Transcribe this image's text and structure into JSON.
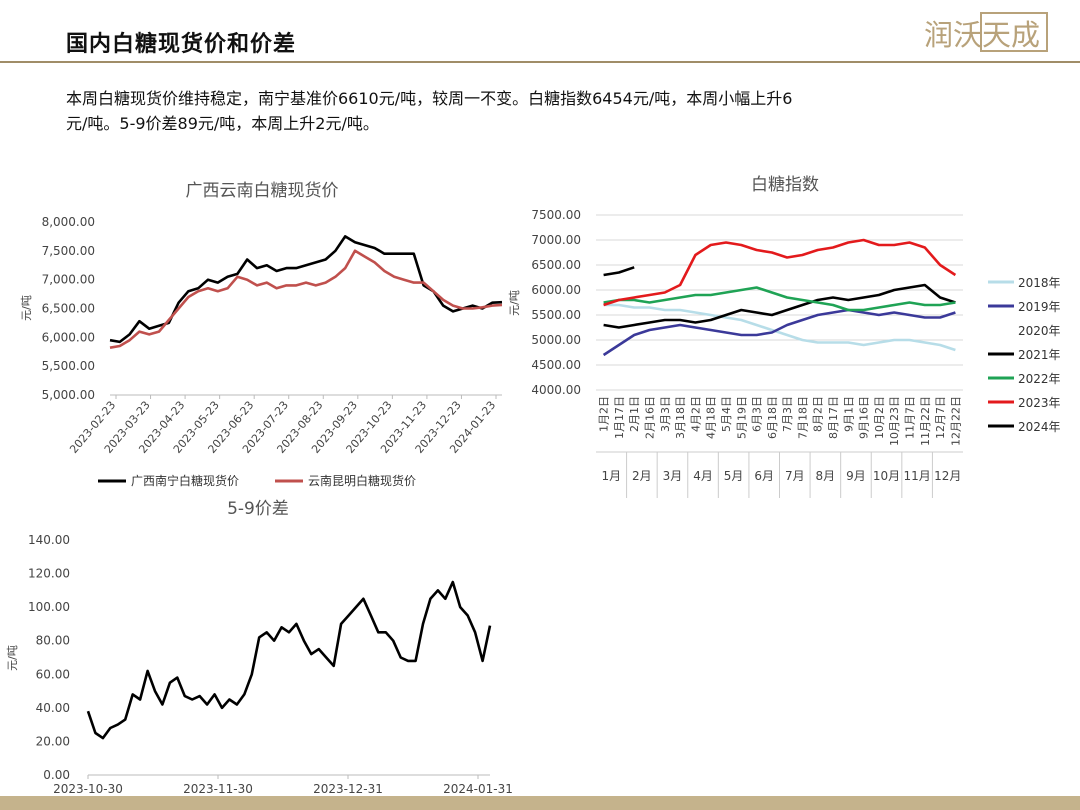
{
  "page": {
    "title": "国内白糖现货价和价差",
    "summary_line1": "本周白糖现货价维持稳定，南宁基准价6610元/吨，较周一不变。白糖指数6454元/吨，本周小幅上升6",
    "summary_line2": "元/吨。5-9价差89元/吨，本周上升2元/吨。",
    "logo_text": "润沃天成"
  },
  "chart_data": [
    {
      "type": "line",
      "title": "广西云南白糖现货价",
      "ylabel": "元/吨",
      "ylim": [
        5000,
        8000
      ],
      "yticks": [
        "5,000.00",
        "5,500.00",
        "6,000.00",
        "6,500.00",
        "7,000.00",
        "7,500.00",
        "8,000.00"
      ],
      "x_ticks": [
        "2023-02-23",
        "2023-03-23",
        "2023-04-23",
        "2023-05-23",
        "2023-06-23",
        "2023-07-23",
        "2023-08-23",
        "2023-09-23",
        "2023-10-23",
        "2023-11-23",
        "2023-12-23",
        "2024-01-23"
      ],
      "series": [
        {
          "name": "广西南宁白糖现货价",
          "color": "#000000",
          "values": [
            5950,
            5920,
            6050,
            6280,
            6150,
            6200,
            6250,
            6600,
            6800,
            6850,
            7000,
            6950,
            7050,
            7100,
            7350,
            7200,
            7250,
            7150,
            7200,
            7200,
            7250,
            7300,
            7350,
            7500,
            7750,
            7650,
            7600,
            7550,
            7450,
            7450,
            7450,
            7450,
            6900,
            6800,
            6550,
            6450,
            6500,
            6550,
            6500,
            6600,
            6610
          ]
        },
        {
          "name": "云南昆明白糖现货价",
          "color": "#c0504d",
          "values": [
            5820,
            5850,
            5950,
            6100,
            6050,
            6100,
            6300,
            6500,
            6700,
            6800,
            6850,
            6800,
            6850,
            7050,
            7000,
            6900,
            6950,
            6850,
            6900,
            6900,
            6950,
            6900,
            6950,
            7050,
            7200,
            7500,
            7400,
            7300,
            7150,
            7050,
            7000,
            6950,
            6950,
            6800,
            6650,
            6550,
            6500,
            6500,
            6520,
            6550,
            6560
          ]
        }
      ]
    },
    {
      "type": "line",
      "title": "白糖指数",
      "ylim": [
        4000,
        7500
      ],
      "yticks": [
        "4000.00",
        "4500.00",
        "5000.00",
        "5500.00",
        "6000.00",
        "6500.00",
        "7000.00",
        "7500.00"
      ],
      "x_ticks": [
        "1月2日",
        "1月17日",
        "2月1日",
        "2月16日",
        "3月3日",
        "3月18日",
        "4月2日",
        "4月18日",
        "5月4日",
        "5月19日",
        "6月3日",
        "6月18日",
        "7月3日",
        "7月18日",
        "8月2日",
        "8月17日",
        "9月1日",
        "9月16日",
        "10月2日",
        "10月23日",
        "11月7日",
        "11月22日",
        "12月7日",
        "12月22日"
      ],
      "months": [
        "1月",
        "2月",
        "3月",
        "4月",
        "5月",
        "6月",
        "7月",
        "8月",
        "9月",
        "10月",
        "11月",
        "12月"
      ],
      "series": [
        {
          "name": "2018年",
          "color": "#b7dde8",
          "values": [
            5700,
            5700,
            5650,
            5650,
            5600,
            5600,
            5550,
            5500,
            5450,
            5400,
            5300,
            5200,
            5100,
            5000,
            4950,
            4950,
            4950,
            4900,
            4950,
            5000,
            5000,
            4950,
            4900,
            4800
          ]
        },
        {
          "name": "2019年",
          "color": "#3b3999",
          "values": [
            4700,
            4900,
            5100,
            5200,
            5250,
            5300,
            5250,
            5200,
            5150,
            5100,
            5100,
            5150,
            5300,
            5400,
            5500,
            5550,
            5600,
            5550,
            5500,
            5550,
            5500,
            5450,
            5450,
            5550
          ]
        },
        {
          "name": "2020年",
          "color": "#ffffff",
          "values": []
        },
        {
          "name": "2021年",
          "color": "#000000",
          "values": [
            5300,
            5250,
            5300,
            5350,
            5400,
            5400,
            5350,
            5400,
            5500,
            5600,
            5550,
            5500,
            5600,
            5700,
            5800,
            5850,
            5800,
            5850,
            5900,
            6000,
            6050,
            6100,
            5850,
            5750
          ]
        },
        {
          "name": "2022年",
          "color": "#1fa355",
          "values": [
            5750,
            5800,
            5800,
            5750,
            5800,
            5850,
            5900,
            5900,
            5950,
            6000,
            6050,
            5950,
            5850,
            5800,
            5750,
            5700,
            5600,
            5600,
            5650,
            5700,
            5750,
            5700,
            5700,
            5750
          ]
        },
        {
          "name": "2023年",
          "color": "#e31a1c",
          "values": [
            5700,
            5800,
            5850,
            5900,
            5950,
            6100,
            6700,
            6900,
            6950,
            6900,
            6800,
            6750,
            6650,
            6700,
            6800,
            6850,
            6950,
            7000,
            6900,
            6900,
            6950,
            6850,
            6500,
            6300
          ]
        },
        {
          "name": "2024年",
          "color": "#000000",
          "values": [
            6300,
            6350,
            6454
          ]
        }
      ]
    },
    {
      "type": "line",
      "title": "5-9价差",
      "ylabel": "元/吨",
      "ylim": [
        0,
        140
      ],
      "yticks": [
        "0.00",
        "20.00",
        "40.00",
        "60.00",
        "80.00",
        "100.00",
        "120.00",
        "140.00"
      ],
      "x_ticks": [
        "2023-10-30",
        "2023-11-30",
        "2023-12-31",
        "2024-01-31"
      ],
      "series": [
        {
          "name": "5-9价差",
          "color": "#000000",
          "values": [
            38,
            25,
            22,
            28,
            30,
            33,
            48,
            45,
            62,
            50,
            42,
            55,
            58,
            47,
            45,
            47,
            42,
            48,
            40,
            45,
            42,
            48,
            60,
            82,
            85,
            80,
            88,
            85,
            90,
            80,
            72,
            75,
            70,
            65,
            90,
            95,
            100,
            105,
            95,
            85,
            85,
            80,
            70,
            68,
            68,
            90,
            105,
            110,
            105,
            115,
            100,
            95,
            85,
            68,
            89
          ]
        }
      ]
    }
  ]
}
